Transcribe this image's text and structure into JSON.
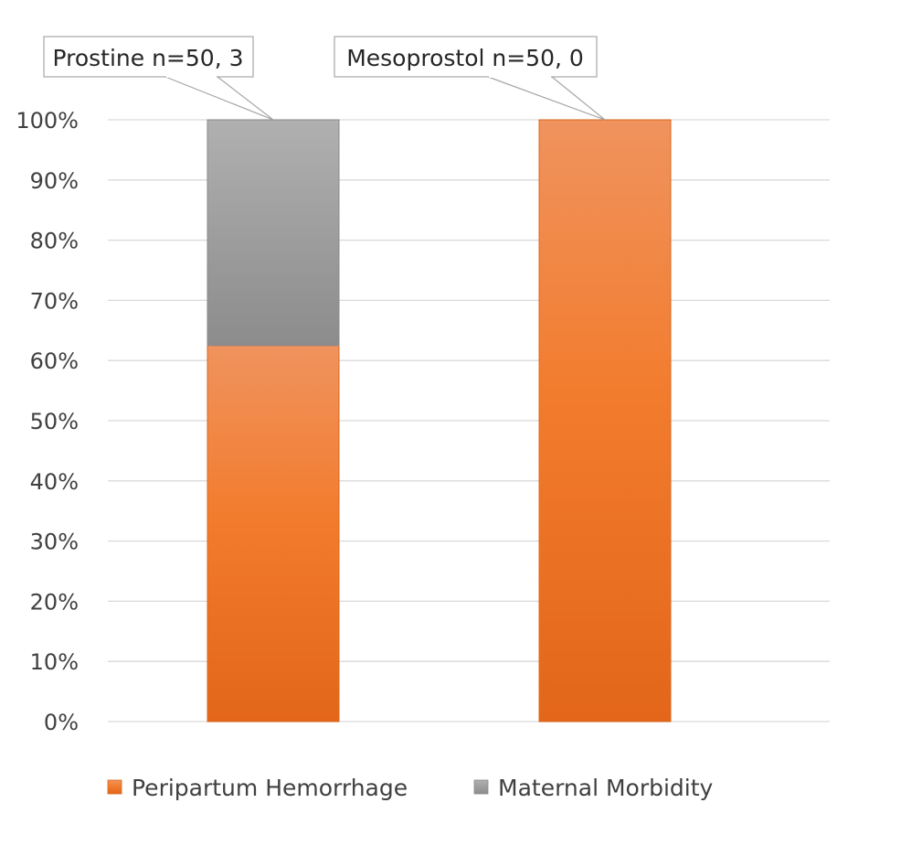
{
  "chart_data": {
    "type": "bar",
    "stacked": true,
    "percent_stacked": true,
    "title": "",
    "xlabel": "",
    "ylabel": "",
    "ylim": [
      0,
      100
    ],
    "y_tick_values": [
      0,
      10,
      20,
      30,
      40,
      50,
      60,
      70,
      80,
      90,
      100
    ],
    "y_tick_labels": [
      "0%",
      "10%",
      "20%",
      "30%",
      "40%",
      "50%",
      "60%",
      "70%",
      "80%",
      "90%",
      "100%"
    ],
    "grid": true,
    "legend_position": "bottom",
    "category_labels": [
      "Prostine n=50, 3",
      "Mesoprostol n=50, 0"
    ],
    "series": [
      {
        "name": "Peripartum Hemorrhage",
        "color": "#ED7D31",
        "values": [
          62.5,
          100
        ]
      },
      {
        "name": "Maternal Morbidity",
        "color": "#A5A5A5",
        "values": [
          37.5,
          0
        ]
      }
    ]
  }
}
